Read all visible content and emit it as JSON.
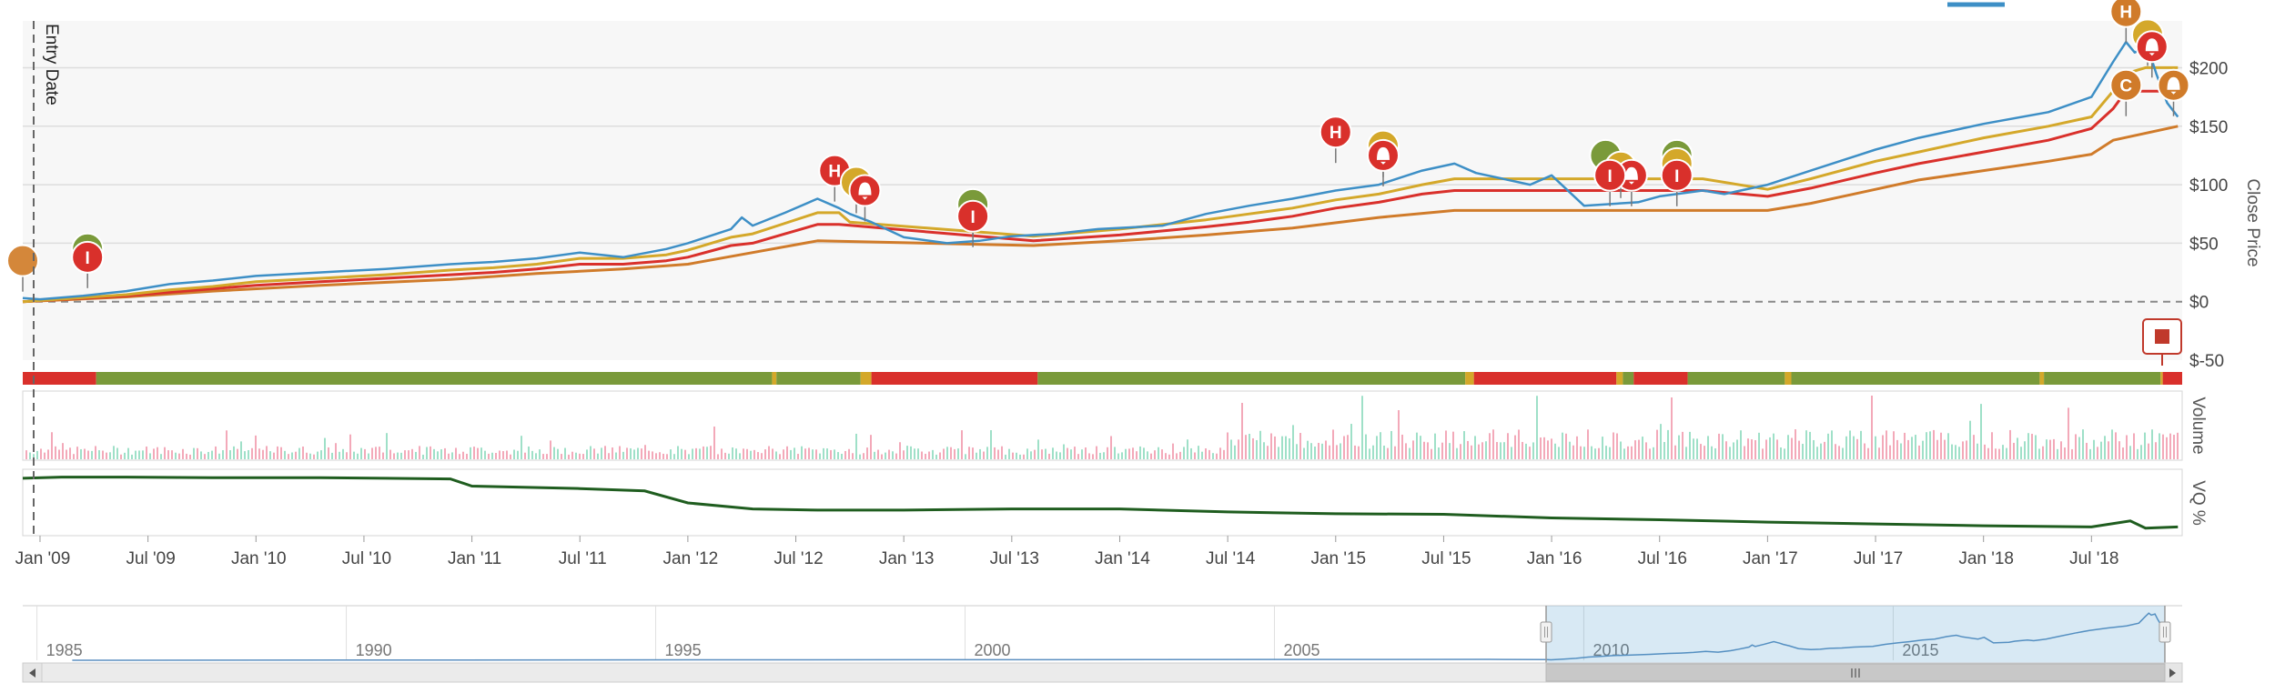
{
  "chart_data": {
    "type": "line",
    "title": "",
    "annotations": {
      "entry_date_label": "Entry Date"
    },
    "price_axis": {
      "label": "Close Price",
      "ticks": [
        "$200",
        "$150",
        "$100",
        "$50",
        "$0",
        "$-50"
      ],
      "tick_values": [
        200,
        150,
        100,
        50,
        0,
        -50
      ],
      "range": [
        -50,
        240
      ]
    },
    "volume_axis": {
      "label": "Volume"
    },
    "vq_axis": {
      "label": "VQ %"
    },
    "x_axis": {
      "ticks": [
        "Jan '09",
        "Jul '09",
        "Jan '10",
        "Jul '10",
        "Jan '11",
        "Jul '11",
        "Jan '12",
        "Jul '12",
        "Jan '13",
        "Jul '13",
        "Jan '14",
        "Jul '14",
        "Jan '15",
        "Jul '15",
        "Jan '16",
        "Jul '16",
        "Jan '17",
        "Jul '17",
        "Jan '18",
        "Jul '18"
      ],
      "tick_years": [
        2009,
        2009.5,
        2010,
        2010.5,
        2011,
        2011.5,
        2012,
        2012.5,
        2013,
        2013.5,
        2014,
        2014.5,
        2015,
        2015.5,
        2016,
        2016.5,
        2017,
        2017.5,
        2018,
        2018.5
      ],
      "range": [
        2008.92,
        2018.92
      ]
    },
    "series": [
      {
        "role": "close",
        "color": "#3d8fc6",
        "x": [
          2008.92,
          2009.0,
          2009.2,
          2009.4,
          2009.6,
          2009.8,
          2010.0,
          2010.3,
          2010.6,
          2010.9,
          2011.1,
          2011.3,
          2011.5,
          2011.7,
          2011.9,
          2012.0,
          2012.2,
          2012.25,
          2012.3,
          2012.45,
          2012.6,
          2012.7,
          2012.75,
          2012.85,
          2013.0,
          2013.2,
          2013.35,
          2013.5,
          2013.7,
          2013.9,
          2014.2,
          2014.4,
          2014.6,
          2014.8,
          2015.0,
          2015.2,
          2015.4,
          2015.55,
          2015.65,
          2015.9,
          2016.0,
          2016.15,
          2016.4,
          2016.5,
          2016.7,
          2016.8,
          2017.0,
          2017.2,
          2017.5,
          2017.7,
          2018.0,
          2018.3,
          2018.5,
          2018.6,
          2018.66,
          2018.7,
          2018.76,
          2018.8,
          2018.85,
          2018.9
        ],
        "y": [
          3,
          2,
          5,
          9,
          15,
          18,
          22,
          25,
          28,
          32,
          34,
          37,
          42,
          38,
          45,
          50,
          62,
          72,
          65,
          76,
          88,
          80,
          75,
          68,
          55,
          50,
          52,
          56,
          58,
          62,
          65,
          75,
          82,
          88,
          95,
          100,
          112,
          118,
          110,
          100,
          108,
          82,
          85,
          90,
          95,
          92,
          100,
          112,
          130,
          140,
          152,
          162,
          175,
          205,
          222,
          213,
          218,
          195,
          170,
          158
        ]
      },
      {
        "role": "gold-stop",
        "color": "#d4a82a",
        "x": [
          2008.92,
          2009.4,
          2009.6,
          2009.8,
          2010.0,
          2010.3,
          2010.6,
          2010.9,
          2011.1,
          2011.3,
          2011.5,
          2011.7,
          2011.9,
          2012.0,
          2012.2,
          2012.3,
          2012.45,
          2012.6,
          2012.7,
          2012.75,
          2013.6,
          2014.0,
          2014.4,
          2014.6,
          2014.8,
          2015.0,
          2015.2,
          2015.4,
          2015.55,
          2015.65,
          2016.5,
          2016.7,
          2017.0,
          2017.2,
          2017.5,
          2017.7,
          2018.0,
          2018.3,
          2018.5,
          2018.6,
          2018.66,
          2018.75,
          2018.9
        ],
        "y": [
          0,
          6,
          10,
          13,
          17,
          20,
          23,
          27,
          29,
          32,
          37,
          37,
          40,
          44,
          55,
          58,
          67,
          76,
          76,
          68,
          56,
          62,
          70,
          75,
          80,
          87,
          92,
          100,
          105,
          105,
          105,
          105,
          96,
          105,
          120,
          128,
          140,
          150,
          158,
          180,
          195,
          200,
          200
        ]
      },
      {
        "role": "red-stop",
        "color": "#d9302b",
        "x": [
          2008.92,
          2009.4,
          2009.6,
          2009.8,
          2010.0,
          2010.3,
          2010.6,
          2010.9,
          2011.1,
          2011.3,
          2011.5,
          2011.7,
          2011.9,
          2012.0,
          2012.2,
          2012.3,
          2012.45,
          2012.6,
          2012.7,
          2013.6,
          2014.0,
          2014.4,
          2014.6,
          2014.8,
          2015.0,
          2015.2,
          2015.4,
          2015.55,
          2016.5,
          2016.7,
          2017.0,
          2017.2,
          2017.5,
          2017.7,
          2018.0,
          2018.3,
          2018.5,
          2018.6,
          2018.66,
          2018.9
        ],
        "y": [
          0,
          5,
          8,
          11,
          14,
          17,
          20,
          23,
          25,
          28,
          32,
          32,
          35,
          38,
          48,
          50,
          58,
          66,
          66,
          52,
          57,
          64,
          68,
          73,
          80,
          85,
          92,
          95,
          95,
          95,
          90,
          97,
          110,
          118,
          128,
          138,
          148,
          165,
          180,
          180
        ]
      },
      {
        "role": "orange-stop",
        "color": "#d07b2a",
        "x": [
          2008.92,
          2009.4,
          2009.8,
          2010.3,
          2010.9,
          2011.3,
          2011.7,
          2012.0,
          2012.3,
          2012.6,
          2013.6,
          2014.0,
          2014.4,
          2014.8,
          2015.2,
          2015.55,
          2016.5,
          2017.0,
          2017.2,
          2017.5,
          2017.7,
          2018.0,
          2018.3,
          2018.5,
          2018.6,
          2018.9
        ],
        "y": [
          0,
          4,
          9,
          14,
          19,
          24,
          28,
          32,
          42,
          52,
          48,
          52,
          57,
          63,
          72,
          78,
          78,
          78,
          84,
          96,
          104,
          112,
          120,
          126,
          138,
          150
        ]
      },
      {
        "role": "vq-percent",
        "color": "#1f5d1f",
        "x": [
          2008.92,
          2009.1,
          2009.4,
          2009.8,
          2010.3,
          2010.6,
          2010.9,
          2011.0,
          2011.5,
          2011.8,
          2012.0,
          2012.3,
          2012.6,
          2013.0,
          2013.5,
          2014.0,
          2014.5,
          2015.0,
          2015.5,
          2016.0,
          2016.5,
          2017.0,
          2017.5,
          2018.0,
          2018.5,
          2018.68,
          2018.75,
          2018.9
        ],
        "y": [
          0.91,
          0.93,
          0.93,
          0.92,
          0.92,
          0.91,
          0.9,
          0.78,
          0.74,
          0.7,
          0.5,
          0.4,
          0.38,
          0.38,
          0.4,
          0.4,
          0.35,
          0.32,
          0.31,
          0.25,
          0.22,
          0.18,
          0.15,
          0.12,
          0.1,
          0.2,
          0.08,
          0.1
        ]
      }
    ],
    "markers": [
      {
        "letter": "",
        "x": 2008.92,
        "y": 35,
        "color": "#d4873a"
      },
      {
        "letter": "",
        "x": 2009.22,
        "y": 45,
        "color": "#7a9a3a"
      },
      {
        "letter": "I",
        "x": 2009.22,
        "y": 38,
        "color": "#d9302b"
      },
      {
        "letter": "H",
        "x": 2012.68,
        "y": 112,
        "color": "#d9302b"
      },
      {
        "letter": "",
        "x": 2012.78,
        "y": 102,
        "color": "#d4a82a"
      },
      {
        "letter": "",
        "x": 2012.82,
        "y": 95,
        "color": "#d9302b",
        "bell": true
      },
      {
        "letter": "",
        "x": 2013.32,
        "y": 83,
        "color": "#7a9a3a"
      },
      {
        "letter": "I",
        "x": 2013.32,
        "y": 73,
        "color": "#d9302b"
      },
      {
        "letter": "H",
        "x": 2015.0,
        "y": 145,
        "color": "#d9302b"
      },
      {
        "letter": "",
        "x": 2015.22,
        "y": 133,
        "color": "#d4a82a"
      },
      {
        "letter": "",
        "x": 2015.22,
        "y": 125,
        "color": "#d9302b",
        "bell": true
      },
      {
        "letter": "",
        "x": 2016.25,
        "y": 125,
        "color": "#7a9a3a"
      },
      {
        "letter": "",
        "x": 2016.32,
        "y": 115,
        "color": "#d4a82a"
      },
      {
        "letter": "",
        "x": 2016.37,
        "y": 108,
        "color": "#d9302b",
        "bell": true
      },
      {
        "letter": "I",
        "x": 2016.27,
        "y": 108,
        "color": "#d9302b"
      },
      {
        "letter": "",
        "x": 2016.58,
        "y": 125,
        "color": "#7a9a3a"
      },
      {
        "letter": "",
        "x": 2016.58,
        "y": 118,
        "color": "#d4a82a"
      },
      {
        "letter": "I",
        "x": 2016.58,
        "y": 108,
        "color": "#d9302b"
      },
      {
        "letter": "H",
        "x": 2018.66,
        "y": 248,
        "color": "#d07b2a"
      },
      {
        "letter": "",
        "x": 2018.76,
        "y": 228,
        "color": "#d4a82a"
      },
      {
        "letter": "",
        "x": 2018.78,
        "y": 218,
        "color": "#d9302b",
        "bell": true
      },
      {
        "letter": "C",
        "x": 2018.66,
        "y": 185,
        "color": "#d07b2a"
      },
      {
        "letter": "",
        "x": 2018.88,
        "y": 185,
        "color": "#d07b2a",
        "bell": true
      }
    ],
    "status_band": [
      {
        "from": 2008.92,
        "to": 2009.26,
        "color": "#d9302b"
      },
      {
        "from": 2009.26,
        "to": 2012.39,
        "color": "#7a9a3a"
      },
      {
        "from": 2012.39,
        "to": 2012.41,
        "color": "#d4a82a"
      },
      {
        "from": 2012.41,
        "to": 2012.8,
        "color": "#7a9a3a"
      },
      {
        "from": 2012.8,
        "to": 2012.85,
        "color": "#d4a82a"
      },
      {
        "from": 2012.85,
        "to": 2013.62,
        "color": "#d9302b"
      },
      {
        "from": 2013.62,
        "to": 2015.6,
        "color": "#7a9a3a"
      },
      {
        "from": 2015.6,
        "to": 2015.64,
        "color": "#d4a82a"
      },
      {
        "from": 2015.64,
        "to": 2016.3,
        "color": "#d9302b"
      },
      {
        "from": 2016.3,
        "to": 2016.33,
        "color": "#d4a82a"
      },
      {
        "from": 2016.33,
        "to": 2016.38,
        "color": "#7a9a3a"
      },
      {
        "from": 2016.38,
        "to": 2016.63,
        "color": "#d9302b"
      },
      {
        "from": 2016.63,
        "to": 2017.08,
        "color": "#7a9a3a"
      },
      {
        "from": 2017.08,
        "to": 2017.11,
        "color": "#d4a82a"
      },
      {
        "from": 2017.11,
        "to": 2018.26,
        "color": "#7a9a3a"
      },
      {
        "from": 2018.26,
        "to": 2018.28,
        "color": "#d4a82a"
      },
      {
        "from": 2018.28,
        "to": 2018.82,
        "color": "#7a9a3a"
      },
      {
        "from": 2018.82,
        "to": 2018.83,
        "color": "#d4a82a"
      },
      {
        "from": 2018.83,
        "to": 2018.92,
        "color": "#d9302b"
      }
    ],
    "navigator": {
      "ticks": [
        "1985",
        "1990",
        "1995",
        "2000",
        "2005",
        "2010",
        "2015"
      ],
      "tick_years": [
        1985,
        1990,
        1995,
        2000,
        2005,
        2010,
        2015
      ],
      "range": [
        1984.3,
        2019.2
      ],
      "selected_range": [
        2008.92,
        2018.92
      ]
    }
  }
}
